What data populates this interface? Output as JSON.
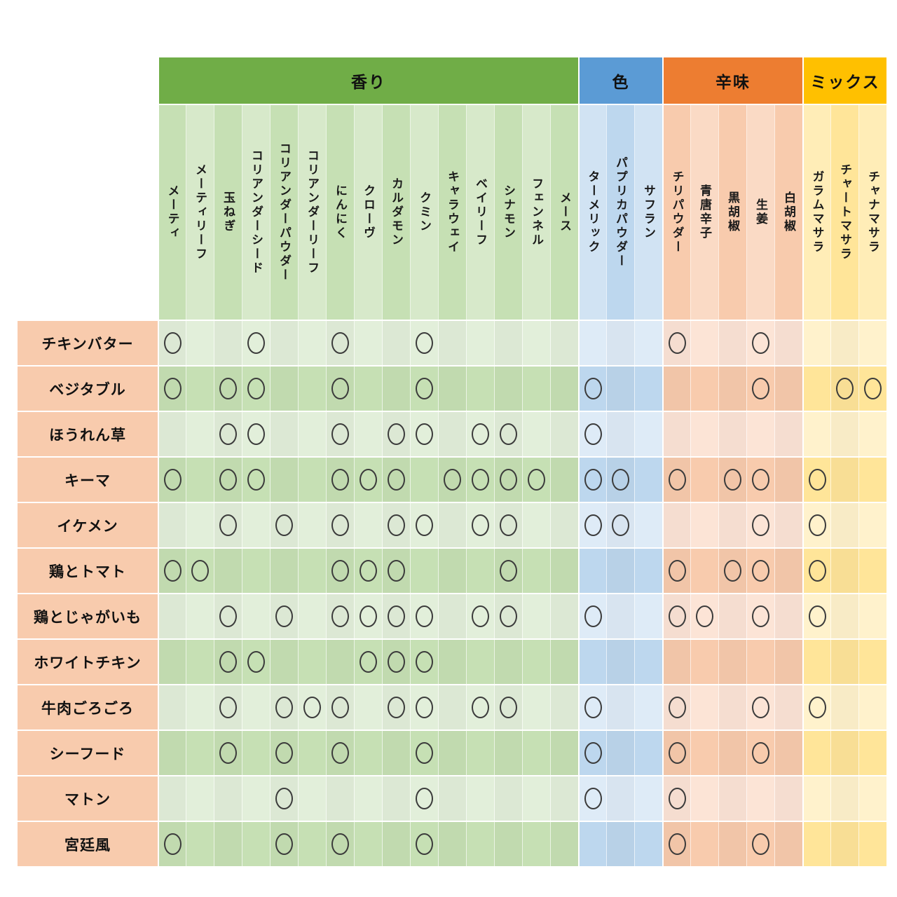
{
  "chart_data": {
    "type": "table",
    "title": "",
    "mark_symbol": "○",
    "row_label_bg": "#f8cbad",
    "column_groups": [
      {
        "name": "aroma",
        "label": "香り",
        "span": 15,
        "header_color": "#70ad47",
        "cell_light": "#e2efda",
        "cell_dark": "#c6e0b4"
      },
      {
        "name": "color",
        "label": "色",
        "span": 3,
        "header_color": "#5b9bd5",
        "cell_light": "#deebf7",
        "cell_dark": "#bdd7ee"
      },
      {
        "name": "heat",
        "label": "辛味",
        "span": 5,
        "header_color": "#ed7d31",
        "cell_light": "#fce4d6",
        "cell_dark": "#f8cbad"
      },
      {
        "name": "mix",
        "label": "ミックス",
        "span": 3,
        "header_color": "#ffc000",
        "cell_light": "#fff2cc",
        "cell_dark": "#ffe599"
      }
    ],
    "columns": [
      "メーティ",
      "メーティリーフ",
      "玉ねぎ",
      "コリアンダーシード",
      "コリアンダーパウダー",
      "コリアンダーリーフ",
      "にんにく",
      "クローヴ",
      "カルダモン",
      "クミン",
      "キャラウェイ",
      "ベイリーフ",
      "シナモン",
      "フェンネル",
      "メース",
      "ターメリック",
      "パプリカパウダー",
      "サフラン",
      "チリパウダー",
      "青唐辛子",
      "黒胡椒",
      "生姜",
      "白胡椒",
      "ガラムマサラ",
      "チャートマサラ",
      "チャナマサラ"
    ],
    "rows": [
      {
        "label": "チキンバター",
        "marks": [
          1,
          4,
          7,
          10,
          19,
          22
        ]
      },
      {
        "label": "ベジタブル",
        "marks": [
          1,
          3,
          4,
          7,
          10,
          16,
          22,
          25,
          26
        ]
      },
      {
        "label": "ほうれん草",
        "marks": [
          3,
          4,
          7,
          9,
          10,
          12,
          13,
          16
        ]
      },
      {
        "label": "キーマ",
        "marks": [
          1,
          3,
          4,
          7,
          8,
          9,
          11,
          12,
          13,
          14,
          16,
          17,
          19,
          21,
          22,
          24
        ]
      },
      {
        "label": "イケメン",
        "marks": [
          3,
          5,
          7,
          9,
          10,
          12,
          13,
          16,
          17,
          22,
          24
        ]
      },
      {
        "label": "鶏とトマト",
        "marks": [
          1,
          2,
          7,
          8,
          9,
          13,
          19,
          21,
          22,
          24
        ]
      },
      {
        "label": "鶏とじゃがいも",
        "marks": [
          3,
          5,
          7,
          8,
          9,
          10,
          12,
          13,
          16,
          19,
          20,
          22,
          24
        ]
      },
      {
        "label": "ホワイトチキン",
        "marks": [
          3,
          4,
          8,
          9,
          10
        ]
      },
      {
        "label": "牛肉ごろごろ",
        "marks": [
          3,
          5,
          6,
          7,
          9,
          10,
          12,
          13,
          16,
          19,
          22,
          24
        ]
      },
      {
        "label": "シーフード",
        "marks": [
          3,
          5,
          7,
          10,
          16,
          19,
          22
        ]
      },
      {
        "label": "マトン",
        "marks": [
          5,
          10,
          16,
          19
        ]
      },
      {
        "label": "宮廷風",
        "marks": [
          1,
          5,
          7,
          10,
          19,
          22
        ]
      }
    ]
  }
}
